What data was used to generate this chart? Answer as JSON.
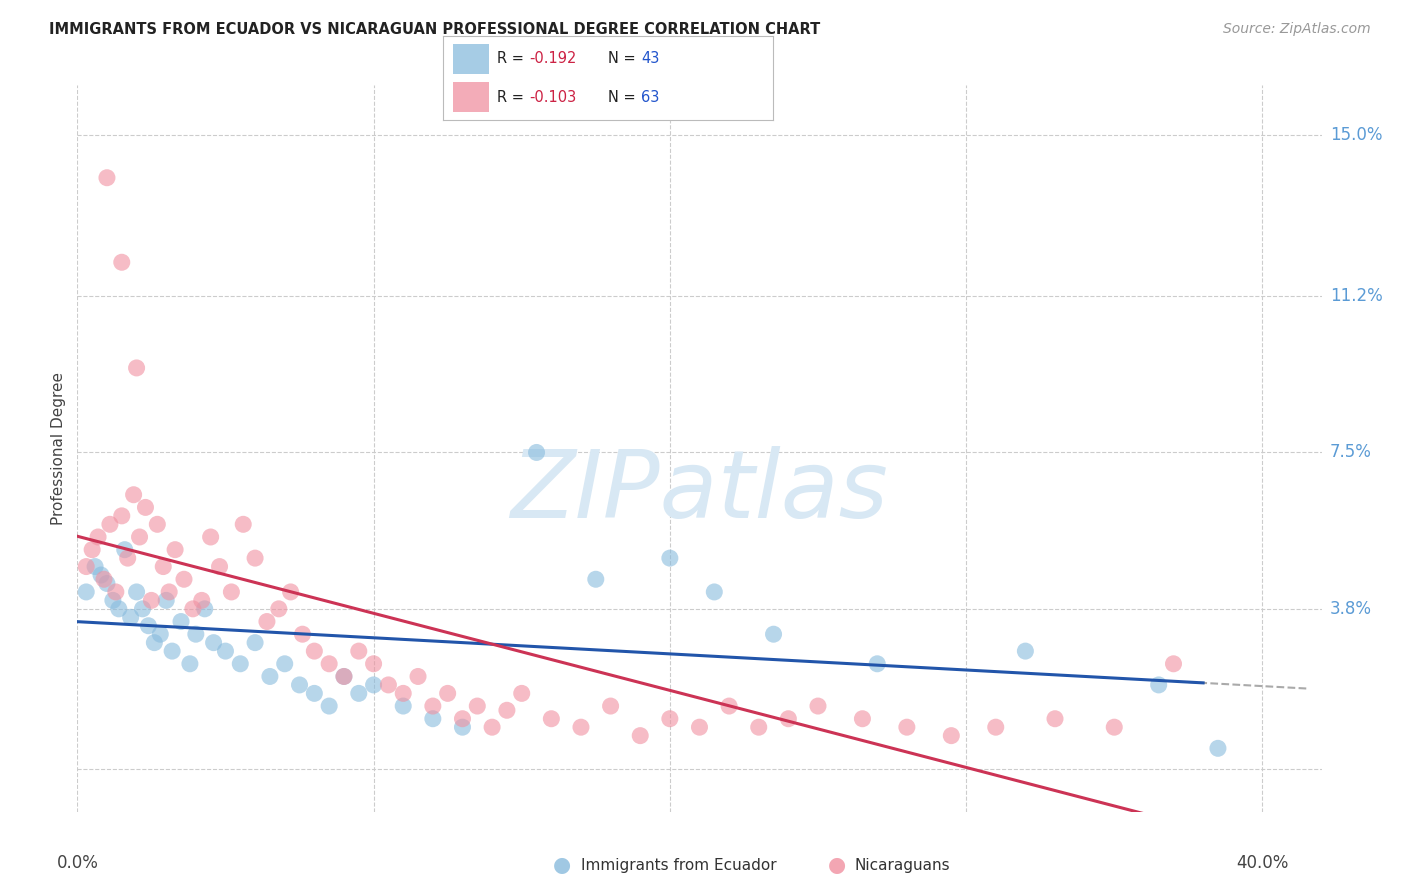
{
  "title": "IMMIGRANTS FROM ECUADOR VS NICARAGUAN PROFESSIONAL DEGREE CORRELATION CHART",
  "source": "Source: ZipAtlas.com",
  "ylabel": "Professional Degree",
  "x_range": [
    0.0,
    0.42
  ],
  "y_range": [
    -0.01,
    0.162
  ],
  "y_ticks": [
    0.0,
    0.038,
    0.075,
    0.112,
    0.15
  ],
  "y_tick_labels": [
    "",
    "3.8%",
    "7.5%",
    "11.2%",
    "15.0%"
  ],
  "x_ticks": [
    0.0,
    0.1,
    0.2,
    0.3,
    0.4
  ],
  "ecuador_color": "#88bbdd",
  "nicaragua_color": "#f090a0",
  "ecuador_line_color": "#2255aa",
  "nicaragua_line_color": "#cc3355",
  "dash_color": "#aaaaaa",
  "watermark_color": "#d8e8f4",
  "grid_color": "#cccccc",
  "background_color": "#ffffff",
  "right_label_color": "#5b9bd5",
  "title_color": "#222222",
  "source_color": "#999999",
  "ecuador_x": [
    0.003,
    0.006,
    0.008,
    0.01,
    0.012,
    0.014,
    0.016,
    0.018,
    0.02,
    0.022,
    0.024,
    0.026,
    0.028,
    0.03,
    0.032,
    0.035,
    0.038,
    0.04,
    0.043,
    0.046,
    0.05,
    0.055,
    0.06,
    0.065,
    0.07,
    0.075,
    0.08,
    0.085,
    0.09,
    0.095,
    0.1,
    0.11,
    0.12,
    0.13,
    0.155,
    0.175,
    0.2,
    0.215,
    0.235,
    0.27,
    0.32,
    0.365,
    0.385
  ],
  "ecuador_y": [
    0.042,
    0.048,
    0.046,
    0.044,
    0.04,
    0.038,
    0.052,
    0.036,
    0.042,
    0.038,
    0.034,
    0.03,
    0.032,
    0.04,
    0.028,
    0.035,
    0.025,
    0.032,
    0.038,
    0.03,
    0.028,
    0.025,
    0.03,
    0.022,
    0.025,
    0.02,
    0.018,
    0.015,
    0.022,
    0.018,
    0.02,
    0.015,
    0.012,
    0.01,
    0.075,
    0.045,
    0.05,
    0.042,
    0.032,
    0.025,
    0.028,
    0.02,
    0.005
  ],
  "nicaragua_x": [
    0.003,
    0.005,
    0.007,
    0.009,
    0.011,
    0.013,
    0.015,
    0.017,
    0.019,
    0.021,
    0.023,
    0.025,
    0.027,
    0.029,
    0.031,
    0.033,
    0.036,
    0.039,
    0.042,
    0.045,
    0.048,
    0.052,
    0.056,
    0.06,
    0.064,
    0.068,
    0.072,
    0.076,
    0.08,
    0.085,
    0.09,
    0.095,
    0.1,
    0.105,
    0.11,
    0.115,
    0.12,
    0.125,
    0.13,
    0.135,
    0.14,
    0.145,
    0.15,
    0.16,
    0.17,
    0.18,
    0.19,
    0.2,
    0.21,
    0.22,
    0.23,
    0.24,
    0.25,
    0.265,
    0.28,
    0.295,
    0.31,
    0.33,
    0.35,
    0.37,
    0.01,
    0.015,
    0.02
  ],
  "nicaragua_y": [
    0.048,
    0.052,
    0.055,
    0.045,
    0.058,
    0.042,
    0.06,
    0.05,
    0.065,
    0.055,
    0.062,
    0.04,
    0.058,
    0.048,
    0.042,
    0.052,
    0.045,
    0.038,
    0.04,
    0.055,
    0.048,
    0.042,
    0.058,
    0.05,
    0.035,
    0.038,
    0.042,
    0.032,
    0.028,
    0.025,
    0.022,
    0.028,
    0.025,
    0.02,
    0.018,
    0.022,
    0.015,
    0.018,
    0.012,
    0.015,
    0.01,
    0.014,
    0.018,
    0.012,
    0.01,
    0.015,
    0.008,
    0.012,
    0.01,
    0.015,
    0.01,
    0.012,
    0.015,
    0.012,
    0.01,
    0.008,
    0.01,
    0.012,
    0.01,
    0.025,
    0.14,
    0.12,
    0.095
  ],
  "leg_ecuador_R": "R = -0.192",
  "leg_ecuador_N": "N = 43",
  "leg_nicaragua_R": "R = -0.103",
  "leg_nicaragua_N": "N = 63",
  "leg_R_color": "#cc2244",
  "leg_N_color": "#2255cc",
  "bottom_leg_ecuador": "Immigrants from Ecuador",
  "bottom_leg_nicaragua": "Nicaraguans"
}
